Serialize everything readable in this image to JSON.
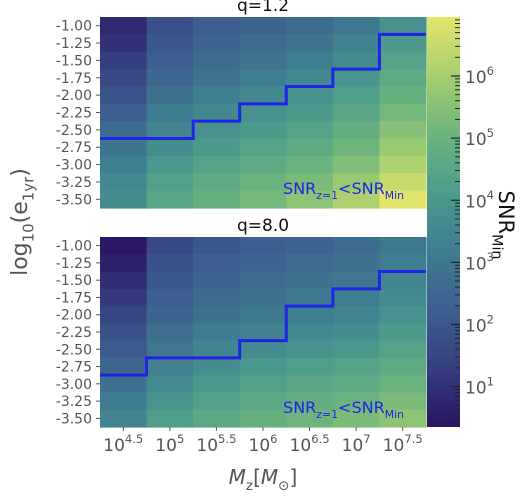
{
  "chart_data": {
    "type": "heatmap",
    "x_label_var": "M",
    "x_label_sub": "z",
    "x_label_unit_open": "[",
    "x_label_unit_M": "M",
    "x_label_unit_sub": "⊙",
    "x_label_unit_close": "]",
    "y_label_main": "log",
    "y_label_sub": "10",
    "y_label_var": "(e",
    "y_label_var_sub": "1yr",
    "y_label_close": ")",
    "x_ticks": [
      {
        "base": "10",
        "exp": "4.5",
        "value": 4.5
      },
      {
        "base": "10",
        "exp": "5",
        "value": 5.0
      },
      {
        "base": "10",
        "exp": "5.5",
        "value": 5.5
      },
      {
        "base": "10",
        "exp": "6",
        "value": 6.0
      },
      {
        "base": "10",
        "exp": "6.5",
        "value": 6.5
      },
      {
        "base": "10",
        "exp": "7",
        "value": 7.0
      },
      {
        "base": "10",
        "exp": "7.5",
        "value": 7.5
      }
    ],
    "x_range_log10": [
      4.25,
      7.75
    ],
    "y_ticks": [
      "-1.00",
      "-1.25",
      "-1.50",
      "-1.75",
      "-2.00",
      "-2.25",
      "-2.50",
      "-2.75",
      "-3.00",
      "-3.25",
      "-3.50"
    ],
    "y_range": [
      -3.625,
      -0.875
    ],
    "colorbar": {
      "label_main": "SNR",
      "label_sub": "Min",
      "scale": "log",
      "range_log10": [
        0.35,
        6.95
      ],
      "ticks": [
        {
          "base": "10",
          "exp": "1",
          "value": 1
        },
        {
          "base": "10",
          "exp": "2",
          "value": 2
        },
        {
          "base": "10",
          "exp": "3",
          "value": 3
        },
        {
          "base": "10",
          "exp": "4",
          "value": 4
        },
        {
          "base": "10",
          "exp": "5",
          "value": 5
        },
        {
          "base": "10",
          "exp": "6",
          "value": 6
        }
      ],
      "colormap": [
        "#2b1463",
        "#353e80",
        "#3d5f8f",
        "#3f7d91",
        "#4c9b8c",
        "#6cb47d",
        "#a6cf6e",
        "#e6e56c"
      ]
    },
    "panels": [
      {
        "title": "q=1.2",
        "annotation_main": "SNR",
        "annotation_sub1": "z=1",
        "annotation_mid": "<SNR",
        "annotation_sub2": "Min",
        "log_snr_grid": [
          [
            0.8,
            1.8,
            2.2,
            2.4,
            2.6,
            3.0,
            3.8
          ],
          [
            1.0,
            2.0,
            2.4,
            2.6,
            2.9,
            3.3,
            4.1
          ],
          [
            1.3,
            2.2,
            2.6,
            2.9,
            3.2,
            3.6,
            4.4
          ],
          [
            1.6,
            2.5,
            2.9,
            3.2,
            3.5,
            3.9,
            4.7
          ],
          [
            1.9,
            2.8,
            3.2,
            3.5,
            3.8,
            4.2,
            4.9
          ],
          [
            2.2,
            3.1,
            3.5,
            3.8,
            4.1,
            4.5,
            5.2
          ],
          [
            2.6,
            3.4,
            3.8,
            4.1,
            4.4,
            4.8,
            5.5
          ],
          [
            2.9,
            3.7,
            4.1,
            4.4,
            4.7,
            5.1,
            5.8
          ],
          [
            3.2,
            4.0,
            4.4,
            4.7,
            5.0,
            5.4,
            6.1
          ],
          [
            3.5,
            4.3,
            4.7,
            5.0,
            5.3,
            5.8,
            6.5
          ],
          [
            3.7,
            4.5,
            4.9,
            5.2,
            5.6,
            6.1,
            6.9
          ]
        ],
        "boundary": [
          [
            4.25,
            -2.625
          ],
          [
            5.25,
            -2.625
          ],
          [
            5.25,
            -2.375
          ],
          [
            5.75,
            -2.375
          ],
          [
            5.75,
            -2.125
          ],
          [
            6.25,
            -2.125
          ],
          [
            6.25,
            -1.875
          ],
          [
            6.75,
            -1.875
          ],
          [
            6.75,
            -1.625
          ],
          [
            7.25,
            -1.625
          ],
          [
            7.25,
            -1.125
          ],
          [
            7.75,
            -1.125
          ]
        ]
      },
      {
        "title": "q=8.0",
        "annotation_main": "SNR",
        "annotation_sub1": "z=1",
        "annotation_mid": "<SNR",
        "annotation_sub2": "Min",
        "log_snr_grid": [
          [
            0.4,
            1.6,
            2.0,
            2.2,
            2.4,
            2.6,
            3.0
          ],
          [
            0.6,
            1.8,
            2.2,
            2.4,
            2.6,
            2.8,
            3.2
          ],
          [
            0.9,
            2.0,
            2.4,
            2.6,
            2.8,
            3.0,
            3.4
          ],
          [
            1.2,
            2.2,
            2.6,
            2.8,
            3.0,
            3.2,
            3.6
          ],
          [
            1.5,
            2.4,
            2.8,
            3.0,
            3.2,
            3.4,
            3.8
          ],
          [
            1.8,
            2.7,
            3.1,
            3.3,
            3.5,
            3.7,
            4.1
          ],
          [
            2.1,
            3.0,
            3.4,
            3.6,
            3.8,
            4.0,
            4.4
          ],
          [
            2.5,
            3.3,
            3.7,
            4.0,
            4.2,
            4.4,
            4.7
          ],
          [
            2.8,
            3.6,
            4.0,
            4.3,
            4.5,
            4.7,
            5.0
          ],
          [
            3.1,
            3.9,
            4.3,
            4.6,
            4.8,
            5.0,
            5.3
          ],
          [
            3.4,
            4.2,
            4.6,
            4.9,
            5.1,
            5.3,
            5.6
          ]
        ],
        "boundary": [
          [
            4.25,
            -2.875
          ],
          [
            4.75,
            -2.875
          ],
          [
            4.75,
            -2.625
          ],
          [
            5.75,
            -2.625
          ],
          [
            5.75,
            -2.375
          ],
          [
            6.25,
            -2.375
          ],
          [
            6.25,
            -1.875
          ],
          [
            6.75,
            -1.875
          ],
          [
            6.75,
            -1.625
          ],
          [
            7.25,
            -1.625
          ],
          [
            7.25,
            -1.375
          ],
          [
            7.75,
            -1.375
          ]
        ]
      }
    ],
    "boundary_color": "#1f24e6",
    "annotation_color": "#1f24e6"
  }
}
